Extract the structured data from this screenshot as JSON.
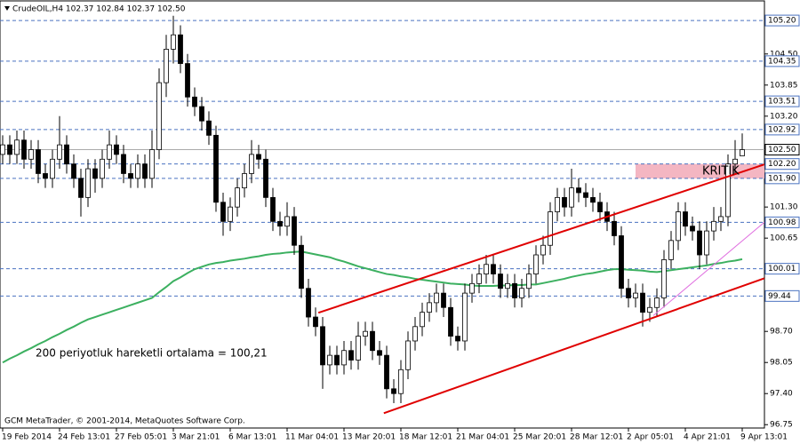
{
  "chart_data": {
    "type": "candlestick",
    "header": "CrudeOIL,H4  102.37 102.84 102.37 102.50",
    "footer": "GCM MetaTrader, © 2001-2014, MetaQuotes Software Corp.",
    "categories": [
      "19 Feb 2014",
      null,
      null,
      null,
      null,
      null,
      null,
      null,
      "24 Feb 13:01",
      null,
      null,
      null,
      null,
      null,
      null,
      null,
      "27 Feb 05:01",
      null,
      null,
      null,
      null,
      null,
      null,
      null,
      "3 Mar 21:01",
      null,
      null,
      null,
      null,
      null,
      null,
      null,
      "6 Mar 13:01",
      null,
      null,
      null,
      null,
      null,
      null,
      null,
      "11 Mar 04:01",
      null,
      null,
      null,
      null,
      null,
      null,
      null,
      "13 Mar 20:01",
      null,
      null,
      null,
      null,
      null,
      null,
      null,
      "18 Mar 12:01",
      null,
      null,
      null,
      null,
      null,
      null,
      null,
      "21 Mar 04:01",
      null,
      null,
      null,
      null,
      null,
      null,
      null,
      "25 Mar 20:01",
      null,
      null,
      null,
      null,
      null,
      null,
      null,
      "28 Mar 12:01",
      null,
      null,
      null,
      null,
      null,
      null,
      null,
      "2 Apr 05:01",
      null,
      null,
      null,
      null,
      null,
      null,
      null,
      "4 Apr 21:01",
      null,
      null,
      null,
      null,
      null,
      null,
      null,
      "9 Apr 13:01"
    ],
    "ohlc": [
      [
        102.4,
        102.8,
        102.2,
        102.6
      ],
      [
        102.6,
        102.8,
        102.2,
        102.4
      ],
      [
        102.4,
        102.9,
        102.2,
        102.7
      ],
      [
        102.7,
        102.9,
        102.1,
        102.3
      ],
      [
        102.3,
        102.7,
        102.1,
        102.5
      ],
      [
        102.5,
        102.7,
        101.8,
        102.0
      ],
      [
        102.0,
        102.2,
        101.7,
        101.9
      ],
      [
        101.9,
        102.5,
        101.7,
        102.3
      ],
      [
        102.3,
        103.2,
        102.1,
        102.6
      ],
      [
        102.6,
        102.8,
        102.0,
        102.2
      ],
      [
        102.2,
        102.4,
        101.7,
        101.9
      ],
      [
        101.9,
        102.1,
        101.1,
        101.5
      ],
      [
        101.5,
        102.3,
        101.3,
        102.1
      ],
      [
        102.1,
        102.3,
        101.6,
        101.9
      ],
      [
        101.9,
        102.5,
        101.7,
        102.3
      ],
      [
        102.3,
        102.9,
        102.1,
        102.6
      ],
      [
        102.6,
        102.8,
        102.2,
        102.4
      ],
      [
        102.4,
        102.6,
        101.8,
        102.0
      ],
      [
        102.0,
        102.2,
        101.7,
        101.9
      ],
      [
        101.9,
        102.4,
        101.7,
        102.2
      ],
      [
        102.2,
        102.4,
        101.7,
        101.9
      ],
      [
        101.9,
        102.9,
        101.7,
        102.5
      ],
      [
        102.5,
        104.2,
        102.3,
        103.9
      ],
      [
        103.9,
        104.9,
        103.6,
        104.6
      ],
      [
        104.6,
        105.3,
        104.3,
        104.9
      ],
      [
        104.9,
        105.1,
        104.1,
        104.3
      ],
      [
        104.3,
        104.5,
        103.4,
        103.6
      ],
      [
        103.6,
        103.8,
        103.2,
        103.4
      ],
      [
        103.4,
        103.6,
        102.9,
        103.1
      ],
      [
        103.1,
        103.3,
        102.6,
        102.8
      ],
      [
        102.8,
        103.0,
        101.2,
        101.4
      ],
      [
        101.4,
        101.6,
        100.7,
        101.0
      ],
      [
        101.0,
        101.5,
        100.8,
        101.3
      ],
      [
        101.3,
        101.9,
        101.1,
        101.7
      ],
      [
        101.7,
        102.2,
        101.5,
        102.0
      ],
      [
        102.0,
        102.7,
        101.8,
        102.4
      ],
      [
        102.4,
        102.6,
        102.1,
        102.3
      ],
      [
        102.3,
        102.5,
        101.3,
        101.5
      ],
      [
        101.5,
        101.7,
        100.8,
        101.0
      ],
      [
        101.0,
        101.2,
        100.7,
        100.9
      ],
      [
        100.9,
        101.4,
        100.7,
        101.1
      ],
      [
        101.1,
        101.3,
        100.3,
        100.5
      ],
      [
        100.5,
        100.7,
        99.4,
        99.6
      ],
      [
        99.6,
        99.8,
        98.8,
        99.0
      ],
      [
        99.0,
        99.2,
        98.6,
        98.8
      ],
      [
        98.8,
        99.0,
        97.5,
        98.0
      ],
      [
        98.0,
        98.4,
        97.8,
        98.2
      ],
      [
        98.2,
        98.4,
        97.8,
        98.0
      ],
      [
        98.0,
        98.5,
        97.8,
        98.3
      ],
      [
        98.3,
        98.5,
        97.9,
        98.1
      ],
      [
        98.1,
        98.9,
        97.9,
        98.6
      ],
      [
        98.6,
        98.9,
        98.4,
        98.7
      ],
      [
        98.7,
        98.9,
        98.1,
        98.3
      ],
      [
        98.3,
        98.5,
        98.0,
        98.2
      ],
      [
        98.2,
        98.4,
        97.3,
        97.5
      ],
      [
        97.5,
        97.7,
        97.2,
        97.4
      ],
      [
        97.4,
        98.1,
        97.2,
        97.9
      ],
      [
        97.9,
        98.7,
        97.7,
        98.5
      ],
      [
        98.5,
        99.0,
        98.3,
        98.8
      ],
      [
        98.8,
        99.3,
        98.6,
        99.1
      ],
      [
        99.1,
        99.5,
        98.9,
        99.3
      ],
      [
        99.3,
        99.7,
        99.1,
        99.5
      ],
      [
        99.5,
        99.7,
        99.0,
        99.2
      ],
      [
        99.2,
        99.4,
        98.4,
        98.6
      ],
      [
        98.6,
        98.8,
        98.3,
        98.5
      ],
      [
        98.5,
        99.7,
        98.3,
        99.5
      ],
      [
        99.5,
        99.9,
        99.3,
        99.7
      ],
      [
        99.7,
        100.1,
        99.5,
        99.9
      ],
      [
        99.9,
        100.3,
        99.7,
        100.1
      ],
      [
        100.1,
        100.3,
        99.7,
        99.9
      ],
      [
        99.9,
        100.1,
        99.4,
        99.6
      ],
      [
        99.6,
        99.9,
        99.4,
        99.7
      ],
      [
        99.7,
        99.9,
        99.2,
        99.4
      ],
      [
        99.4,
        99.8,
        99.2,
        99.6
      ],
      [
        99.6,
        100.1,
        99.4,
        99.9
      ],
      [
        99.9,
        100.5,
        99.7,
        100.3
      ],
      [
        100.3,
        100.7,
        100.1,
        100.5
      ],
      [
        100.5,
        101.4,
        100.3,
        101.2
      ],
      [
        101.2,
        101.7,
        101.0,
        101.5
      ],
      [
        101.5,
        101.7,
        101.1,
        101.3
      ],
      [
        101.3,
        102.1,
        101.1,
        101.7
      ],
      [
        101.7,
        101.9,
        101.4,
        101.6
      ],
      [
        101.6,
        101.8,
        101.3,
        101.5
      ],
      [
        101.5,
        101.7,
        101.2,
        101.4
      ],
      [
        101.4,
        101.6,
        101.0,
        101.2
      ],
      [
        101.2,
        101.4,
        100.8,
        101.0
      ],
      [
        101.0,
        101.2,
        100.5,
        100.7
      ],
      [
        100.7,
        100.9,
        99.4,
        99.6
      ],
      [
        99.6,
        99.8,
        99.2,
        99.4
      ],
      [
        99.4,
        99.7,
        99.2,
        99.5
      ],
      [
        99.5,
        99.7,
        98.8,
        99.1
      ],
      [
        99.1,
        99.4,
        98.9,
        99.2
      ],
      [
        99.2,
        99.6,
        99.0,
        99.4
      ],
      [
        99.4,
        100.4,
        99.2,
        100.2
      ],
      [
        100.2,
        100.8,
        100.0,
        100.6
      ],
      [
        100.6,
        101.4,
        100.4,
        101.2
      ],
      [
        101.2,
        101.4,
        100.7,
        100.9
      ],
      [
        100.9,
        101.1,
        100.6,
        100.8
      ],
      [
        100.8,
        101.0,
        100.0,
        100.3
      ],
      [
        100.3,
        101.0,
        100.1,
        100.8
      ],
      [
        100.8,
        101.3,
        100.6,
        101.0
      ],
      [
        101.0,
        101.3,
        100.8,
        101.1
      ],
      [
        101.1,
        102.4,
        100.9,
        102.2
      ],
      [
        102.2,
        102.7,
        102.0,
        102.3
      ],
      [
        102.37,
        102.84,
        102.37,
        102.5
      ]
    ],
    "ma": {
      "name": "200 periyotluk hareketli ortalama = 100,21",
      "color": "#3cb060",
      "values": [
        98.05,
        98.13,
        98.2,
        98.28,
        98.35,
        98.43,
        98.5,
        98.58,
        98.65,
        98.73,
        98.8,
        98.88,
        98.95,
        99.0,
        99.05,
        99.1,
        99.15,
        99.2,
        99.25,
        99.3,
        99.35,
        99.4,
        99.52,
        99.63,
        99.75,
        99.83,
        99.92,
        100.0,
        100.05,
        100.1,
        100.13,
        100.15,
        100.18,
        100.2,
        100.22,
        100.25,
        100.27,
        100.3,
        100.32,
        100.33,
        100.35,
        100.36,
        100.37,
        100.34,
        100.31,
        100.28,
        100.25,
        100.2,
        100.16,
        100.11,
        100.06,
        100.02,
        99.98,
        99.94,
        99.9,
        99.88,
        99.85,
        99.83,
        99.8,
        99.78,
        99.76,
        99.74,
        99.72,
        99.7,
        99.69,
        99.68,
        99.66,
        99.65,
        99.65,
        99.65,
        99.66,
        99.66,
        99.67,
        99.67,
        99.68,
        99.68,
        99.71,
        99.74,
        99.77,
        99.8,
        99.84,
        99.87,
        99.9,
        99.92,
        99.95,
        99.98,
        100.0,
        100.0,
        99.99,
        99.98,
        99.97,
        99.95,
        99.94,
        99.96,
        99.98,
        100.0,
        100.02,
        100.04,
        100.06,
        100.08,
        100.11,
        100.13,
        100.16,
        100.18,
        100.21
      ]
    },
    "trendlines": [
      {
        "color": "#e00000",
        "x": [
          44.4,
          107.1
        ],
        "y": [
          99.09,
          102.19
        ]
      },
      {
        "color": "#e00000",
        "x": [
          53.6,
          107.1
        ],
        "y": [
          96.99,
          99.81
        ]
      },
      {
        "color": "#e070e0",
        "x": [
          91.5,
          107.1
        ],
        "y": [
          99.03,
          100.98
        ]
      }
    ],
    "zone": {
      "label": "KRITIK",
      "x0": 89,
      "ylim": [
        101.9,
        102.2
      ],
      "color": "#f4b6c2"
    },
    "levels": [
      {
        "value": 105.2,
        "label": "105.20"
      },
      {
        "value": 104.35,
        "label": "104.35"
      },
      {
        "value": 103.51,
        "label": "103.51"
      },
      {
        "value": 102.92,
        "label": "102.92"
      },
      {
        "value": 102.2,
        "label": "102.20"
      },
      {
        "value": 101.9,
        "label": "101.90"
      },
      {
        "value": 100.98,
        "label": "100.98"
      },
      {
        "value": 100.01,
        "label": "100.01"
      },
      {
        "value": 99.44,
        "label": "99.44"
      }
    ],
    "last": {
      "value": 102.5,
      "label": "102.50"
    },
    "xlim": [
      -0.375,
      107.125
    ],
    "ylim": [
      96.68,
      105.61
    ],
    "yticks": [
      {
        "value": 104.5,
        "label": "104.50"
      },
      103.85,
      {
        "value": 103.2,
        "label": "103.20"
      },
      {
        "value": 101.3,
        "label": "101.30"
      },
      100.65,
      {
        "value": 98.7,
        "label": "98.70"
      },
      98.05,
      {
        "value": 97.4,
        "label": "97.40"
      },
      96.75
    ]
  }
}
